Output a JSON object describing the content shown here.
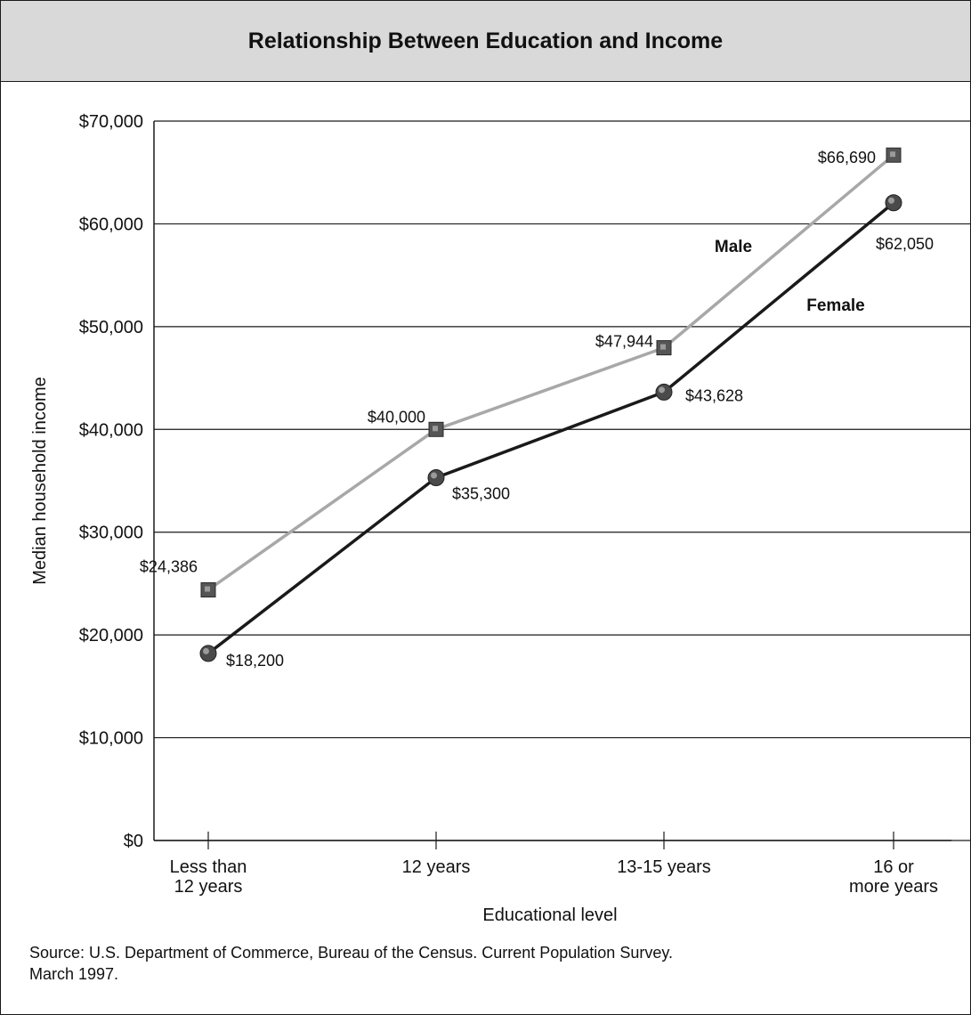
{
  "title": "Relationship Between Education and Income",
  "source_line1": "Source:  U.S. Department of Commerce, Bureau of the Census. Current Population Survey.",
  "source_line2": "March 1997.",
  "chart_data": {
    "type": "line",
    "title": "Relationship Between Education and Income",
    "xlabel": "Educational level",
    "ylabel": "Median household income",
    "categories": [
      [
        "Less than",
        "12 years"
      ],
      [
        "12 years"
      ],
      [
        "13-15 years"
      ],
      [
        "16 or",
        "more years"
      ]
    ],
    "ylim": [
      0,
      70000
    ],
    "yticks": [
      "$0",
      "$10,000",
      "$20,000",
      "$30,000",
      "$40,000",
      "$50,000",
      "$60,000",
      "$70,000"
    ],
    "grid": "horizontal",
    "series": [
      {
        "name": "Male",
        "color": "#a8a8a8",
        "marker": "square",
        "values": [
          24386,
          40000,
          47944,
          66690
        ],
        "labels": [
          "$24,386",
          "$40,000",
          "$47,944",
          "$66,690"
        ]
      },
      {
        "name": "Female",
        "color": "#1a1a1a",
        "marker": "circle",
        "values": [
          18200,
          35300,
          43628,
          62050
        ],
        "labels": [
          "$18,200",
          "$35,300",
          "$43,628",
          "$62,050"
        ]
      }
    ]
  }
}
